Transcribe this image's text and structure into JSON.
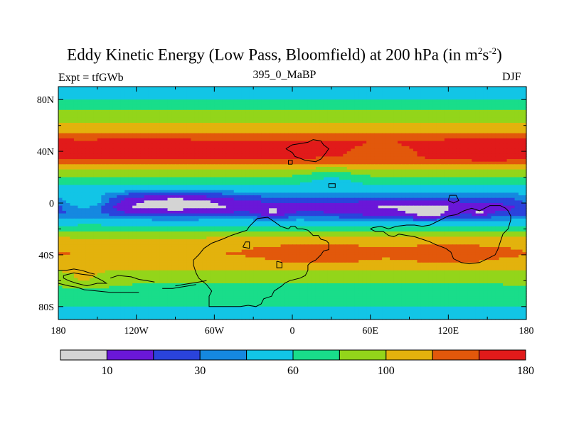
{
  "chart_data": {
    "type": "heatmap",
    "title_main": "Eddy Kinetic Energy (Low Pass, Bloomfield) at 200 hPa (in m",
    "title_unit_sup1": "2",
    "title_unit_mid": "s",
    "title_unit_sup2": "-2",
    "title_close": ")",
    "subtitle": "395_0_MaBP",
    "left_label": "Expt = tfGWb",
    "right_label": "DJF",
    "x_axis": {
      "range": [
        -180,
        180
      ],
      "ticks": [
        -180,
        -120,
        -60,
        0,
        60,
        120,
        180
      ],
      "tick_labels": [
        "180",
        "120W",
        "60W",
        "0",
        "60E",
        "120E",
        "180"
      ]
    },
    "y_axis": {
      "range": [
        -90,
        90
      ],
      "ticks": [
        80,
        40,
        0,
        -40,
        -80
      ],
      "tick_labels": [
        "80N",
        "40N",
        "0",
        "40S",
        "80S"
      ]
    },
    "colorbar": {
      "levels": [
        10,
        20,
        30,
        40,
        60,
        80,
        100,
        120,
        140,
        180
      ],
      "labels": [
        {
          "level": 10,
          "text": "10"
        },
        {
          "level": 30,
          "text": "30"
        },
        {
          "level": 60,
          "text": "60"
        },
        {
          "level": 100,
          "text": "100"
        },
        {
          "level": 180,
          "text": "180"
        }
      ],
      "colors": [
        "#d4d4d4",
        "#6a17d8",
        "#2a43dc",
        "#1588e0",
        "#12c5e6",
        "#19dd8a",
        "#93d51a",
        "#e3b20d",
        "#e2580b",
        "#e11a1a"
      ]
    },
    "zonal_profile": [
      {
        "lat": 90,
        "value": 40
      },
      {
        "lat": 83,
        "value": 50
      },
      {
        "lat": 76,
        "value": 70
      },
      {
        "lat": 68,
        "value": 90
      },
      {
        "lat": 60,
        "value": 105
      },
      {
        "lat": 52,
        "value": 125
      },
      {
        "lat": 46,
        "value": 150
      },
      {
        "lat": 41,
        "value": 152
      },
      {
        "lat": 36,
        "value": 145
      },
      {
        "lat": 30,
        "value": 120
      },
      {
        "lat": 24,
        "value": 95
      },
      {
        "lat": 18,
        "value": 75
      },
      {
        "lat": 12,
        "value": 55
      },
      {
        "lat": 7,
        "value": 38
      },
      {
        "lat": 2,
        "value": 25
      },
      {
        "lat": -3,
        "value": 18
      },
      {
        "lat": -8,
        "value": 25
      },
      {
        "lat": -14,
        "value": 45
      },
      {
        "lat": -20,
        "value": 75
      },
      {
        "lat": -27,
        "value": 100
      },
      {
        "lat": -34,
        "value": 118
      },
      {
        "lat": -40,
        "value": 120
      },
      {
        "lat": -46,
        "value": 112
      },
      {
        "lat": -52,
        "value": 100
      },
      {
        "lat": -58,
        "value": 88
      },
      {
        "lat": -64,
        "value": 78
      },
      {
        "lat": -70,
        "value": 70
      },
      {
        "lat": -76,
        "value": 65
      },
      {
        "lat": -82,
        "value": 55
      },
      {
        "lat": -90,
        "value": 48
      }
    ],
    "anomalies": [
      {
        "lon": -110,
        "lat": 40,
        "rlon": 45,
        "rlat": 8,
        "amp": 15
      },
      {
        "lon": 150,
        "lat": 40,
        "rlon": 40,
        "rlat": 8,
        "amp": 18
      },
      {
        "lon": 70,
        "lat": 40,
        "rlon": 28,
        "rlat": 6,
        "amp": -28
      },
      {
        "lon": -90,
        "lat": 2,
        "rlon": 50,
        "rlat": 10,
        "amp": -18
      },
      {
        "lon": 90,
        "lat": -8,
        "rlon": 60,
        "rlat": 10,
        "amp": -12
      },
      {
        "lon": -15,
        "lat": -8,
        "rlon": 12,
        "rlat": 5,
        "amp": -14
      },
      {
        "lon": 105,
        "lat": -8,
        "rlon": 12,
        "rlat": 5,
        "amp": -14
      },
      {
        "lon": 145,
        "lat": -8,
        "rlon": 6,
        "rlat": 3,
        "amp": -12
      },
      {
        "lon": -160,
        "lat": 0,
        "rlon": 20,
        "rlat": 8,
        "amp": 30
      },
      {
        "lon": 30,
        "lat": 20,
        "rlon": 25,
        "rlat": 8,
        "amp": -20
      },
      {
        "lon": 20,
        "lat": -40,
        "rlon": 35,
        "rlat": 8,
        "amp": 20
      },
      {
        "lon": 120,
        "lat": -40,
        "rlon": 35,
        "rlat": 8,
        "amp": 15
      },
      {
        "lon": -160,
        "lat": -60,
        "rlon": 20,
        "rlat": 6,
        "amp": 15
      }
    ],
    "coastlines": [
      [
        [
          -3,
          -20
        ],
        [
          -1,
          -18
        ],
        [
          2,
          -18
        ],
        [
          4,
          -20
        ],
        [
          8,
          -20
        ],
        [
          12,
          -21
        ],
        [
          14,
          -23
        ],
        [
          16,
          -25
        ],
        [
          20,
          -25
        ],
        [
          22,
          -28
        ],
        [
          26,
          -29
        ],
        [
          28,
          -31
        ],
        [
          28,
          -36
        ],
        [
          24,
          -37
        ],
        [
          22,
          -40
        ],
        [
          18,
          -44
        ],
        [
          14,
          -46
        ],
        [
          12,
          -48
        ],
        [
          12,
          -52
        ],
        [
          10,
          -56
        ],
        [
          6,
          -58
        ],
        [
          -2,
          -60
        ],
        [
          -6,
          -62
        ],
        [
          -8,
          -64
        ],
        [
          -14,
          -68
        ],
        [
          -16,
          -72
        ],
        [
          -22,
          -74
        ],
        [
          -24,
          -78
        ],
        [
          -28,
          -80
        ],
        [
          -34,
          -79
        ],
        [
          -40,
          -80
        ],
        [
          -56,
          -80
        ],
        [
          -64,
          -80
        ],
        [
          -64,
          -72
        ],
        [
          -62,
          -68
        ],
        [
          -66,
          -63
        ],
        [
          -72,
          -58
        ],
        [
          -74,
          -54
        ],
        [
          -76,
          -48
        ],
        [
          -76,
          -44
        ],
        [
          -72,
          -40
        ],
        [
          -68,
          -35
        ],
        [
          -62,
          -31
        ],
        [
          -54,
          -28
        ],
        [
          -47,
          -25
        ],
        [
          -41,
          -23
        ],
        [
          -35,
          -21
        ],
        [
          -33,
          -18
        ],
        [
          -29,
          -14
        ],
        [
          -27,
          -12
        ],
        [
          -19,
          -11
        ],
        [
          -13,
          -15
        ],
        [
          -9,
          -18
        ],
        [
          -3,
          -20
        ]
      ],
      [
        [
          -38,
          -34
        ],
        [
          -36,
          -30
        ],
        [
          -33,
          -30
        ],
        [
          -33,
          -35
        ],
        [
          -38,
          -34
        ]
      ],
      [
        [
          -5,
          42
        ],
        [
          0,
          45
        ],
        [
          6,
          46
        ],
        [
          12,
          47
        ],
        [
          16,
          49
        ],
        [
          22,
          48
        ],
        [
          24,
          45
        ],
        [
          28,
          42
        ],
        [
          26,
          39
        ],
        [
          22,
          34
        ],
        [
          18,
          32
        ],
        [
          10,
          33
        ],
        [
          5,
          35
        ],
        [
          2,
          36
        ],
        [
          0,
          39
        ],
        [
          -5,
          42
        ]
      ],
      [
        [
          0,
          30
        ],
        [
          0,
          33
        ],
        [
          -3,
          33
        ],
        [
          -3,
          30
        ],
        [
          0,
          30
        ]
      ],
      [
        [
          28,
          12
        ],
        [
          33,
          12
        ],
        [
          33,
          15
        ],
        [
          28,
          15
        ],
        [
          28,
          12
        ]
      ],
      [
        [
          60,
          -20
        ],
        [
          64,
          -22
        ],
        [
          70,
          -22
        ],
        [
          74,
          -25
        ],
        [
          78,
          -26
        ],
        [
          82,
          -24
        ],
        [
          88,
          -25
        ],
        [
          94,
          -26
        ],
        [
          100,
          -28
        ],
        [
          106,
          -30
        ],
        [
          110,
          -32
        ],
        [
          118,
          -35
        ],
        [
          122,
          -38
        ],
        [
          124,
          -43
        ],
        [
          130,
          -46
        ],
        [
          136,
          -47
        ],
        [
          144,
          -46
        ],
        [
          150,
          -43
        ],
        [
          156,
          -40
        ],
        [
          158,
          -36
        ],
        [
          160,
          -30
        ],
        [
          162,
          -24
        ],
        [
          166,
          -20
        ],
        [
          168,
          -13
        ],
        [
          168,
          -10
        ],
        [
          166,
          -6
        ],
        [
          164,
          -4
        ],
        [
          160,
          -2
        ],
        [
          152,
          -2
        ],
        [
          148,
          -4
        ],
        [
          144,
          -6
        ],
        [
          138,
          -4
        ],
        [
          132,
          -6
        ],
        [
          126,
          -9
        ],
        [
          120,
          -10
        ],
        [
          116,
          -12
        ],
        [
          112,
          -14
        ],
        [
          106,
          -17
        ],
        [
          100,
          -18
        ],
        [
          94,
          -17
        ],
        [
          88,
          -17
        ],
        [
          80,
          -18
        ],
        [
          74,
          -20
        ],
        [
          68,
          -18
        ],
        [
          62,
          -19
        ],
        [
          60,
          -20
        ]
      ],
      [
        [
          120,
          2
        ],
        [
          124,
          0
        ],
        [
          128,
          2
        ],
        [
          126,
          6
        ],
        [
          121,
          6
        ],
        [
          120,
          2
        ]
      ],
      [
        [
          -176,
          -56
        ],
        [
          -168,
          -54
        ],
        [
          -162,
          -55
        ],
        [
          -154,
          -56
        ],
        [
          -150,
          -58
        ],
        [
          -146,
          -60
        ],
        [
          -143,
          -62
        ],
        [
          -150,
          -62
        ],
        [
          -158,
          -64
        ],
        [
          -166,
          -62
        ],
        [
          -172,
          -60
        ],
        [
          -176,
          -58
        ],
        [
          -176,
          -56
        ]
      ],
      [
        [
          -180,
          -52
        ],
        [
          -174,
          -52
        ],
        [
          -168,
          -51
        ],
        [
          -162,
          -52
        ],
        [
          -156,
          -54
        ],
        [
          -152,
          -55
        ]
      ],
      [
        [
          -140,
          -58
        ],
        [
          -134,
          -56
        ],
        [
          -124,
          -57
        ],
        [
          -118,
          -59
        ],
        [
          -112,
          -60
        ],
        [
          -106,
          -61
        ]
      ],
      [
        [
          -90,
          -64
        ],
        [
          -84,
          -63
        ],
        [
          -78,
          -62
        ],
        [
          -72,
          -61
        ],
        [
          -66,
          -60
        ]
      ],
      [
        [
          -180,
          -62
        ],
        [
          -172,
          -64
        ],
        [
          -166,
          -65
        ],
        [
          -160,
          -67
        ],
        [
          -150,
          -68
        ],
        [
          -140,
          -69
        ],
        [
          -128,
          -69
        ],
        [
          -118,
          -69
        ]
      ],
      [
        [
          -100,
          -66
        ],
        [
          -92,
          -66
        ],
        [
          -86,
          -65
        ],
        [
          -80,
          -64
        ],
        [
          -74,
          -63
        ]
      ],
      [
        [
          -12,
          -45
        ],
        [
          -8,
          -46
        ],
        [
          -8,
          -50
        ],
        [
          -12,
          -50
        ],
        [
          -12,
          -45
        ]
      ]
    ]
  }
}
